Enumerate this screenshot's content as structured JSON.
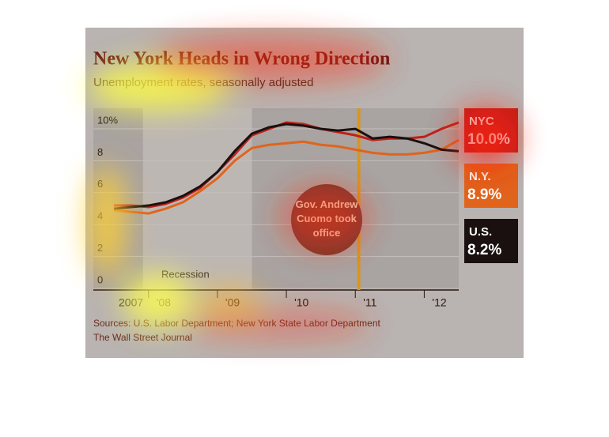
{
  "chart_data": {
    "type": "line",
    "title": "New York Heads in Wrong Direction",
    "subtitle": "Unemployment rates, seasonally adjusted",
    "source": "Sources: U.S. Labor Department; New York State Labor Department",
    "credit": "The Wall Street Journal",
    "annotations": [
      "Recession",
      "Gov. Andrew Cuomo took office"
    ],
    "xlim": [
      2007.2,
      2012.5
    ],
    "xticks": [
      {
        "value": 2007,
        "label": "2007"
      },
      {
        "value": 2008,
        "label": "'08"
      },
      {
        "value": 2009,
        "label": "'09"
      },
      {
        "value": 2010,
        "label": "'10"
      },
      {
        "value": 2011,
        "label": "'11"
      },
      {
        "value": 2012,
        "label": "'12"
      }
    ],
    "ylim": [
      0,
      10.5
    ],
    "yticks": [
      0,
      2,
      4,
      6,
      8,
      {
        "value": 10,
        "label": "10%"
      }
    ],
    "grid": true,
    "x": [
      2007.5,
      2007.75,
      2008,
      2008.25,
      2008.5,
      2008.75,
      2009,
      2009.25,
      2009.5,
      2009.75,
      2010,
      2010.25,
      2010.5,
      2010.75,
      2011,
      2011.25,
      2011.5,
      2011.75,
      2012,
      2012.25,
      2012.5
    ],
    "series": [
      {
        "name": "NYC",
        "color": "#c0201a",
        "end_label": "10.0%",
        "values": [
          4.8,
          4.8,
          4.7,
          4.9,
          5.3,
          5.9,
          6.9,
          8.0,
          9.2,
          9.6,
          10.0,
          9.9,
          9.6,
          9.4,
          9.2,
          8.9,
          9.0,
          9.0,
          9.1,
          9.6,
          10.0
        ]
      },
      {
        "name": "N.Y.",
        "color": "#e0641c",
        "end_label": "8.9%",
        "values": [
          4.5,
          4.4,
          4.3,
          4.6,
          5.0,
          5.7,
          6.5,
          7.6,
          8.4,
          8.6,
          8.7,
          8.8,
          8.6,
          8.5,
          8.3,
          8.1,
          8.0,
          8.0,
          8.1,
          8.3,
          8.9
        ]
      },
      {
        "name": "U.S.",
        "color": "#1a1010",
        "end_label": "8.2%",
        "values": [
          4.6,
          4.7,
          4.8,
          5.0,
          5.4,
          6.0,
          6.9,
          8.2,
          9.3,
          9.7,
          9.9,
          9.8,
          9.6,
          9.5,
          9.6,
          9.0,
          9.1,
          9.0,
          8.7,
          8.3,
          8.2
        ]
      }
    ]
  }
}
